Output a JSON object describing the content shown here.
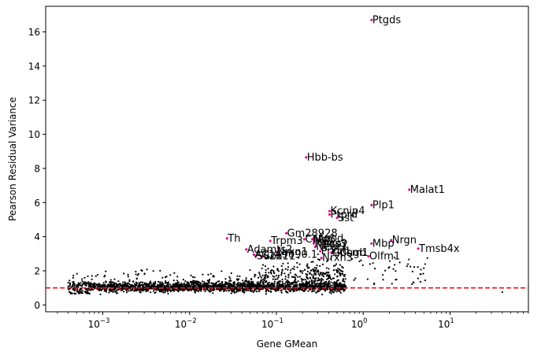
{
  "chart_data": {
    "type": "scatter",
    "xlabel": "Gene GMean",
    "ylabel": "Pearson Residual Variance",
    "x_scale": "log",
    "xlim": [
      0.00022,
      80
    ],
    "ylim": [
      -0.4,
      17.5
    ],
    "x_ticks": [
      {
        "value": 0.001,
        "base": "10",
        "exp": "−3"
      },
      {
        "value": 0.01,
        "base": "10",
        "exp": "−2"
      },
      {
        "value": 0.1,
        "base": "10",
        "exp": "−1"
      },
      {
        "value": 1,
        "base": "10",
        "exp": "0"
      },
      {
        "value": 10,
        "base": "10",
        "exp": "1"
      }
    ],
    "y_ticks": [
      0,
      2,
      4,
      6,
      8,
      10,
      12,
      14,
      16
    ],
    "threshold": {
      "y": 1.0,
      "color": "#e8141b"
    },
    "grid": false,
    "point_color": "#000000",
    "highlight_color": "#e0119a",
    "highlighted_genes": [
      {
        "label": "Ptgds",
        "x": 1.25,
        "y": 16.7
      },
      {
        "label": "Hbb-bs",
        "x": 0.22,
        "y": 8.65
      },
      {
        "label": "Malat1",
        "x": 3.4,
        "y": 6.75
      },
      {
        "label": "Plp1",
        "x": 1.25,
        "y": 5.85
      },
      {
        "label": "Kcnip4",
        "x": 0.41,
        "y": 5.5
      },
      {
        "label": "Ptprd",
        "x": 0.41,
        "y": 5.3
      },
      {
        "label": "Sst",
        "x": 0.5,
        "y": 5.1
      },
      {
        "label": "Gm28928",
        "x": 0.13,
        "y": 4.2
      },
      {
        "label": "Th",
        "x": 0.027,
        "y": 3.9
      },
      {
        "label": "Trpm3",
        "x": 0.085,
        "y": 3.75
      },
      {
        "label": "Cntn5",
        "x": 0.21,
        "y": 3.85
      },
      {
        "label": "Npy",
        "x": 0.26,
        "y": 3.85
      },
      {
        "label": "Apod",
        "x": 0.29,
        "y": 3.9
      },
      {
        "label": "Nrgn",
        "x": 2.1,
        "y": 3.8
      },
      {
        "label": "Mbp",
        "x": 1.25,
        "y": 3.6
      },
      {
        "label": "Npas3",
        "x": 0.27,
        "y": 3.6
      },
      {
        "label": "Pcp2",
        "x": 0.34,
        "y": 3.55
      },
      {
        "label": "Tmsb4x",
        "x": 4.3,
        "y": 3.3
      },
      {
        "label": "Adamts2",
        "x": 0.045,
        "y": 3.25
      },
      {
        "label": "Negr1",
        "x": 0.28,
        "y": 3.4
      },
      {
        "label": "Nrxn1",
        "x": 0.1,
        "y": 3.1
      },
      {
        "label": "Prkcd",
        "x": 0.32,
        "y": 3.15
      },
      {
        "label": "Gpsm1",
        "x": 0.43,
        "y": 3.05
      },
      {
        "label": "AC149090.1",
        "x": 0.055,
        "y": 2.95
      },
      {
        "label": "Chgb",
        "x": 0.52,
        "y": 3.05
      },
      {
        "label": "Sv2b",
        "x": 0.058,
        "y": 2.85
      },
      {
        "label": "Sox11",
        "x": 0.07,
        "y": 2.85
      },
      {
        "label": "Olfm1",
        "x": 1.15,
        "y": 2.85
      },
      {
        "label": "Nrxn3",
        "x": 0.33,
        "y": 2.75
      }
    ]
  }
}
